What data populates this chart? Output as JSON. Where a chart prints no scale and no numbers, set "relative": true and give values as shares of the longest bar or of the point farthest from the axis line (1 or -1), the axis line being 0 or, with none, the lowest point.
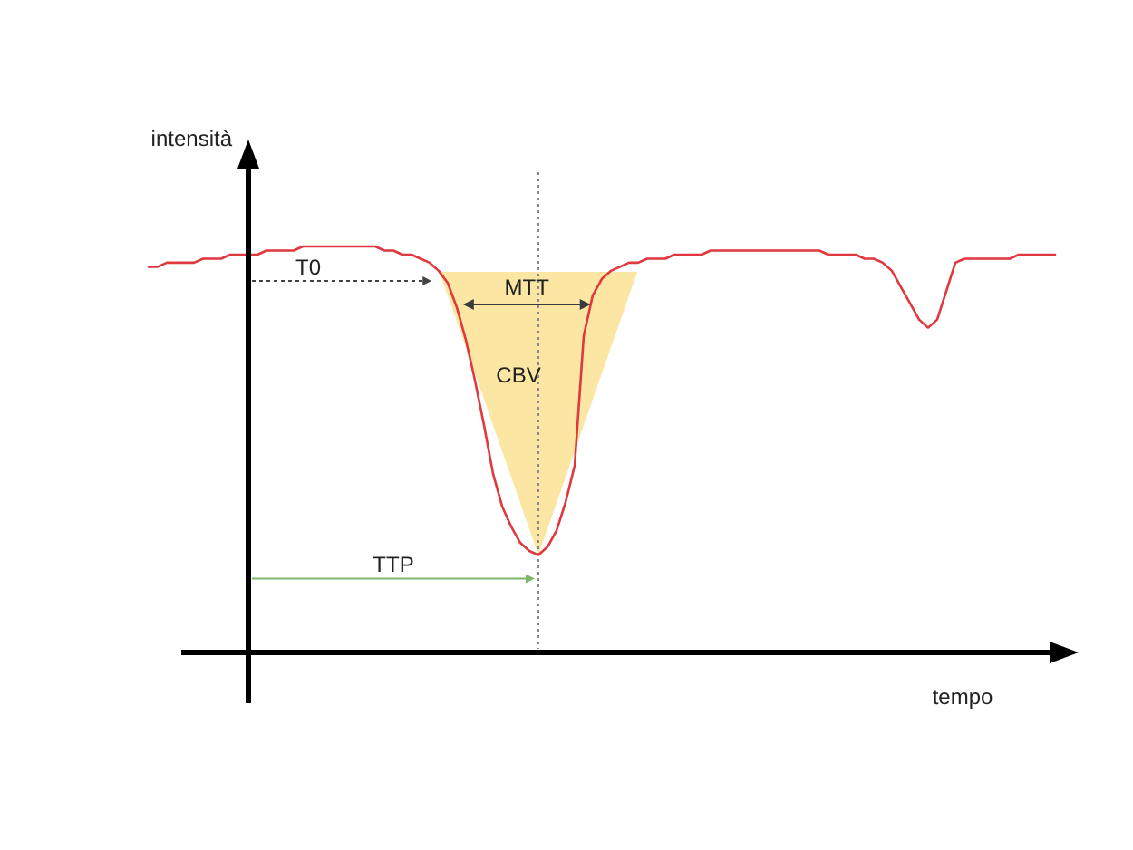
{
  "chart_data": {
    "type": "line",
    "relative": true,
    "xlabel": "tempo",
    "ylabel": "intensità",
    "marker": "none",
    "line_style": "solid",
    "categories": [
      null,
      null,
      null,
      null,
      null,
      null,
      null,
      null,
      null,
      null,
      null,
      null,
      null,
      null,
      null,
      null,
      null,
      null,
      null,
      null,
      null,
      null,
      null,
      null,
      null,
      null,
      null,
      null,
      null,
      null,
      null,
      null,
      null,
      null,
      null,
      null,
      null,
      null,
      null,
      null,
      null,
      null,
      null,
      null,
      null,
      null,
      null,
      null,
      null,
      null,
      null,
      null,
      null,
      null,
      null,
      null,
      null,
      null,
      null,
      null,
      null,
      null,
      null,
      null,
      null,
      null,
      null,
      null,
      null,
      null,
      null,
      null,
      null,
      null,
      null,
      null,
      null,
      null,
      null,
      null,
      null,
      null,
      null,
      null,
      null,
      null,
      null,
      null,
      null,
      null,
      null,
      null,
      null,
      null,
      null,
      null,
      null,
      null,
      null,
      null,
      null
    ],
    "series": [
      {
        "color": "#e0383e",
        "values": [
          0.95,
          0.95,
          0.96,
          0.96,
          0.96,
          0.96,
          0.97,
          0.97,
          0.97,
          0.98,
          0.98,
          0.98,
          0.98,
          0.99,
          0.99,
          0.99,
          0.99,
          1.0,
          1.0,
          1.0,
          1.0,
          1.0,
          1.0,
          1.0,
          1.0,
          1.0,
          0.99,
          0.99,
          0.98,
          0.98,
          0.97,
          0.96,
          0.94,
          0.91,
          0.85,
          0.77,
          0.67,
          0.56,
          0.44,
          0.36,
          0.31,
          0.27,
          0.25,
          0.24,
          0.26,
          0.3,
          0.37,
          0.46,
          0.78,
          0.88,
          0.92,
          0.94,
          0.95,
          0.96,
          0.96,
          0.97,
          0.97,
          0.97,
          0.98,
          0.98,
          0.98,
          0.98,
          0.99,
          0.99,
          0.99,
          0.99,
          0.99,
          0.99,
          0.99,
          0.99,
          0.99,
          0.99,
          0.99,
          0.99,
          0.99,
          0.98,
          0.98,
          0.98,
          0.98,
          0.97,
          0.97,
          0.96,
          0.94,
          0.9,
          0.86,
          0.82,
          0.8,
          0.82,
          0.89,
          0.96,
          0.97,
          0.97,
          0.97,
          0.97,
          0.97,
          0.97,
          0.98,
          0.98,
          0.98,
          0.98,
          0.98
        ]
      }
    ],
    "annotations": [
      "T0",
      "MTT",
      "CBV",
      "TTP"
    ]
  }
}
